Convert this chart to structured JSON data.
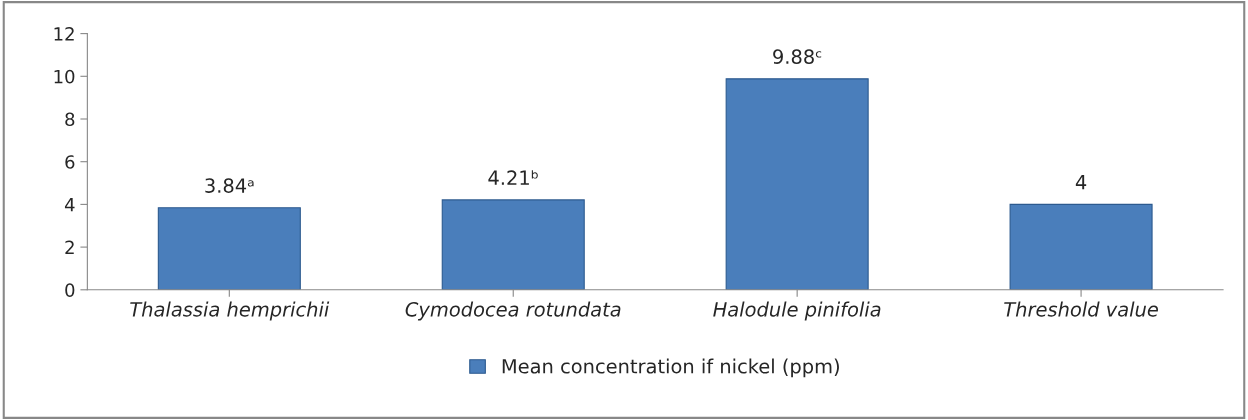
{
  "chart_data": {
    "type": "bar",
    "categories": [
      "Thalassia hemprichii",
      "Cymodocea rotundata",
      "Halodule pinifolia",
      "Threshold value"
    ],
    "series": [
      {
        "name": "Mean concentration if nickel (ppm)",
        "color": "#4a7ebb",
        "values": [
          3.84,
          4.21,
          9.88,
          4
        ],
        "value_labels": [
          "3.84ᵃ",
          "4.21ᵇ",
          "9.88ᶜ",
          "4"
        ]
      }
    ],
    "ylim": [
      0,
      12
    ],
    "yticks": [
      0,
      2,
      4,
      6,
      8,
      10,
      12
    ],
    "grid": false,
    "legend": "bottom"
  }
}
